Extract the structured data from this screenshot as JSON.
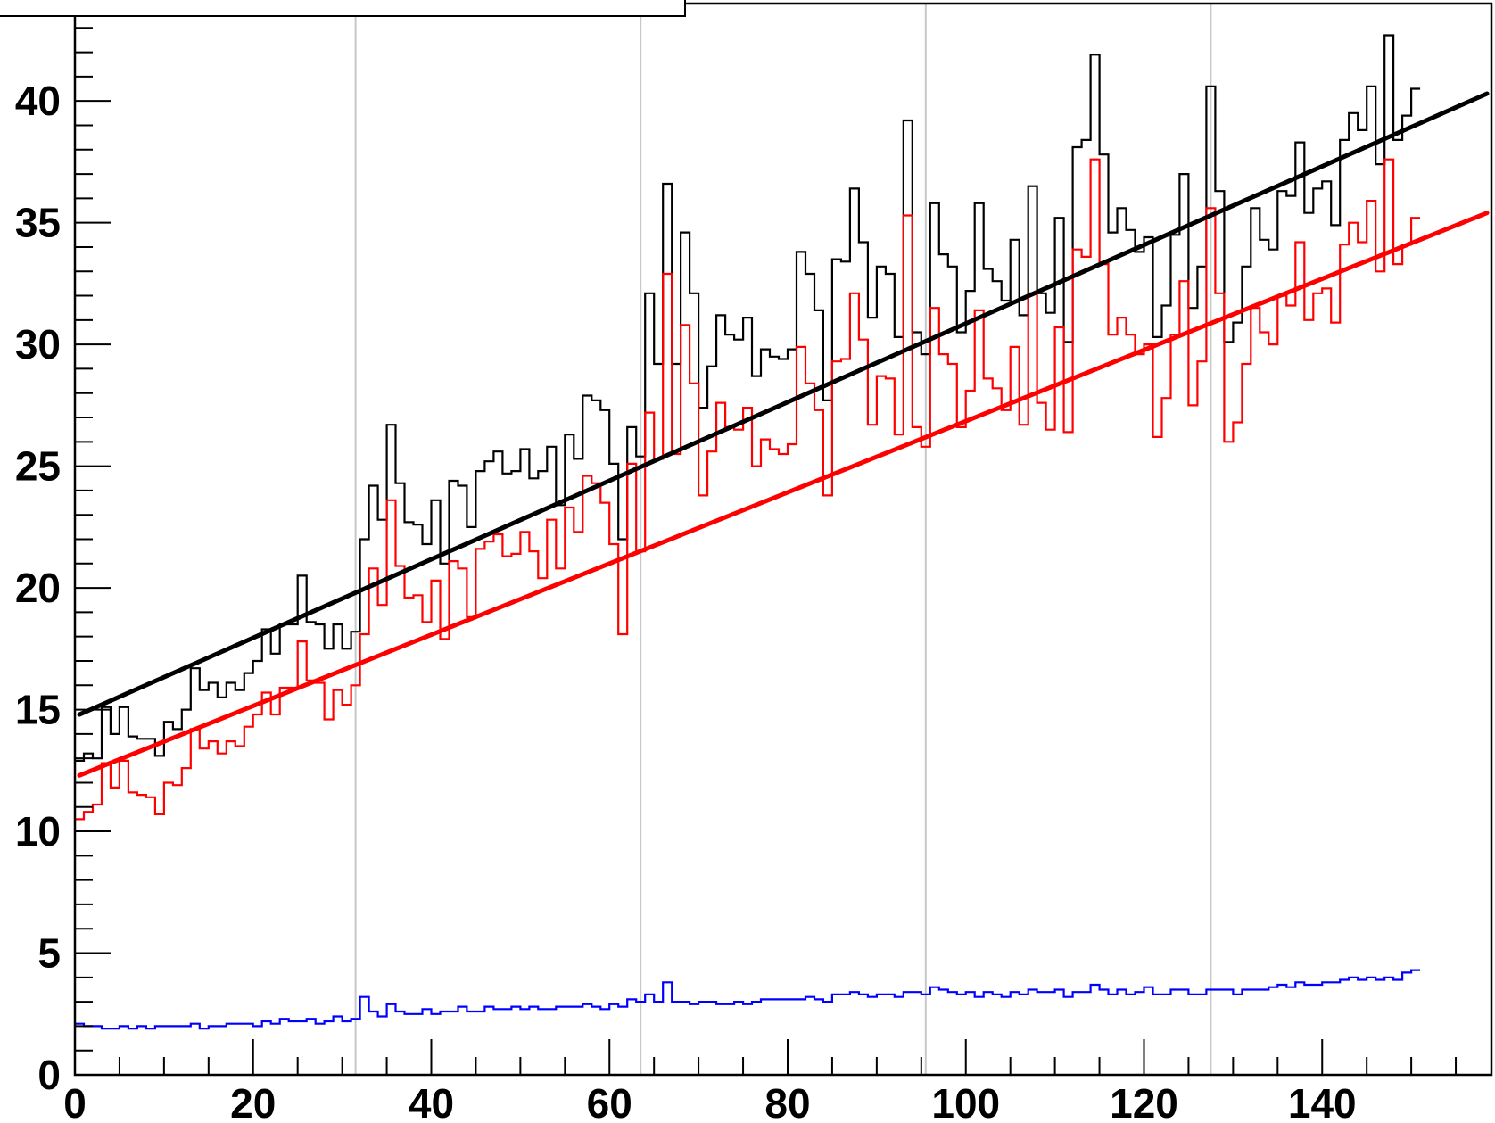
{
  "chart_data": {
    "type": "histogram",
    "title": "",
    "xlabel": "",
    "ylabel": "",
    "xlim": [
      0,
      159
    ],
    "ylim": [
      0,
      44
    ],
    "x_ticks": [
      0,
      20,
      40,
      60,
      80,
      100,
      120,
      140
    ],
    "y_ticks": [
      0,
      5,
      10,
      15,
      20,
      25,
      30,
      35,
      40
    ],
    "vertical_gridlines_x": [
      31.5,
      63.5,
      95.5,
      127.5
    ],
    "colors": {
      "black": "#000000",
      "red": "#ff0000",
      "blue": "#0000ff",
      "grid": "#c8c8c8"
    },
    "series": [
      {
        "color": "#000000",
        "values": [
          12.9,
          13.2,
          13.0,
          15.1,
          14.0,
          15.1,
          13.9,
          13.8,
          13.8,
          13.1,
          14.5,
          14.2,
          15.0,
          16.7,
          15.8,
          16.1,
          15.5,
          16.1,
          15.8,
          16.5,
          17.0,
          18.3,
          17.3,
          18.5,
          18.5,
          20.5,
          18.6,
          18.5,
          17.5,
          18.5,
          17.5,
          18.2,
          22.0,
          24.2,
          22.8,
          26.7,
          24.3,
          22.7,
          22.6,
          21.8,
          23.6,
          21.0,
          24.4,
          24.2,
          22.5,
          24.8,
          25.2,
          25.6,
          24.7,
          24.8,
          25.7,
          24.5,
          24.8,
          25.8,
          23.4,
          26.3,
          25.3,
          27.9,
          27.7,
          27.3,
          25.1,
          22.0,
          26.6,
          25.4,
          32.1,
          29.2,
          36.6,
          29.2,
          34.6,
          32.1,
          27.4,
          29.1,
          31.2,
          30.4,
          30.2,
          31.1,
          28.7,
          29.8,
          29.5,
          29.4,
          29.8,
          33.8,
          32.9,
          31.4,
          27.7,
          33.5,
          33.4,
          36.4,
          34.2,
          31.1,
          33.2,
          32.9,
          30.3,
          39.2,
          30.5,
          29.6,
          35.8,
          33.7,
          33.2,
          30.5,
          32.2,
          35.8,
          33.1,
          32.6,
          31.8,
          34.3,
          31.2,
          36.5,
          32.1,
          31.3,
          35.2,
          30.1,
          38.1,
          38.4,
          41.9,
          37.8,
          34.6,
          35.6,
          34.7,
          33.8,
          34.4,
          30.3,
          31.6,
          34.5,
          37.0,
          31.5,
          33.2,
          40.6,
          36.3,
          30.1,
          30.9,
          33.2,
          35.6,
          34.3,
          33.9,
          36.3,
          36.1,
          38.3,
          35.4,
          36.4,
          36.7,
          34.9,
          38.4,
          39.5,
          38.8,
          40.6,
          37.4,
          42.7,
          38.4,
          39.4,
          40.5
        ]
      },
      {
        "color": "#ff0000",
        "values": [
          10.5,
          10.8,
          11.1,
          12.8,
          11.8,
          12.9,
          11.6,
          11.5,
          11.4,
          10.7,
          12.0,
          11.9,
          12.6,
          14.2,
          13.4,
          13.7,
          13.2,
          13.7,
          13.5,
          14.3,
          14.8,
          15.7,
          14.8,
          15.9,
          15.9,
          17.8,
          16.2,
          16.1,
          14.6,
          15.8,
          15.2,
          16.0,
          18.1,
          20.8,
          19.3,
          23.6,
          20.9,
          19.6,
          19.7,
          18.6,
          20.3,
          17.9,
          21.1,
          20.8,
          18.8,
          21.6,
          21.9,
          22.2,
          21.3,
          21.4,
          22.3,
          21.5,
          20.4,
          22.8,
          20.8,
          23.3,
          22.3,
          24.6,
          24.3,
          23.5,
          21.8,
          18.1,
          25.1,
          21.5,
          27.2,
          25.3,
          32.9,
          25.5,
          30.8,
          28.4,
          23.8,
          25.6,
          27.6,
          26.6,
          26.5,
          27.4,
          25.0,
          26.1,
          25.7,
          25.5,
          25.9,
          29.9,
          28.4,
          27.3,
          23.8,
          29.3,
          29.4,
          32.1,
          30.2,
          26.7,
          28.7,
          28.6,
          26.3,
          35.3,
          26.6,
          25.8,
          31.5,
          29.6,
          29.2,
          26.6,
          28.1,
          31.4,
          28.6,
          28.2,
          27.3,
          29.9,
          26.7,
          32.1,
          27.6,
          26.5,
          30.7,
          26.4,
          33.9,
          33.6,
          37.6,
          33.3,
          30.4,
          31.1,
          30.4,
          29.6,
          30.0,
          26.2,
          27.8,
          30.4,
          32.6,
          27.5,
          29.3,
          35.6,
          32.1,
          26.0,
          26.8,
          29.2,
          31.5,
          30.5,
          30.0,
          32.0,
          31.6,
          34.2,
          31.0,
          32.1,
          32.3,
          30.9,
          34.1,
          35.0,
          34.2,
          35.9,
          33.0,
          37.6,
          33.3,
          34.1,
          35.2
        ]
      },
      {
        "color": "#0000ff",
        "values": [
          2.1,
          2.0,
          2.0,
          1.9,
          1.9,
          2.0,
          1.9,
          2.0,
          1.9,
          2.0,
          2.0,
          2.0,
          2.0,
          2.1,
          1.9,
          2.0,
          2.0,
          2.1,
          2.1,
          2.1,
          2.0,
          2.2,
          2.1,
          2.3,
          2.2,
          2.2,
          2.3,
          2.1,
          2.2,
          2.4,
          2.2,
          2.3,
          3.2,
          2.6,
          2.4,
          2.9,
          2.6,
          2.5,
          2.5,
          2.7,
          2.5,
          2.6,
          2.6,
          2.8,
          2.6,
          2.6,
          2.8,
          2.7,
          2.7,
          2.8,
          2.7,
          2.8,
          2.7,
          2.7,
          2.8,
          2.8,
          2.8,
          2.9,
          2.8,
          2.7,
          2.9,
          2.8,
          3.1,
          3.0,
          3.3,
          3.0,
          3.8,
          3.0,
          3.0,
          2.9,
          3.0,
          3.0,
          2.9,
          2.9,
          3.0,
          2.9,
          3.0,
          3.1,
          3.1,
          3.1,
          3.1,
          3.1,
          3.2,
          3.1,
          3.0,
          3.3,
          3.3,
          3.4,
          3.3,
          3.2,
          3.3,
          3.3,
          3.2,
          3.4,
          3.4,
          3.3,
          3.6,
          3.5,
          3.4,
          3.3,
          3.4,
          3.2,
          3.4,
          3.3,
          3.2,
          3.4,
          3.3,
          3.5,
          3.4,
          3.4,
          3.5,
          3.2,
          3.4,
          3.4,
          3.7,
          3.5,
          3.3,
          3.5,
          3.3,
          3.4,
          3.6,
          3.3,
          3.3,
          3.5,
          3.5,
          3.3,
          3.3,
          3.5,
          3.5,
          3.5,
          3.3,
          3.5,
          3.5,
          3.5,
          3.6,
          3.7,
          3.6,
          3.8,
          3.7,
          3.7,
          3.8,
          3.8,
          3.9,
          4.0,
          3.9,
          4.0,
          3.9,
          4.0,
          3.9,
          4.2,
          4.3
        ]
      }
    ],
    "fit_lines": [
      {
        "color": "#000000",
        "x": [
          0.5,
          158.5
        ],
        "y": [
          14.8,
          40.3
        ]
      },
      {
        "color": "#ff0000",
        "x": [
          0.5,
          158.5
        ],
        "y": [
          12.3,
          35.4
        ]
      }
    ]
  }
}
